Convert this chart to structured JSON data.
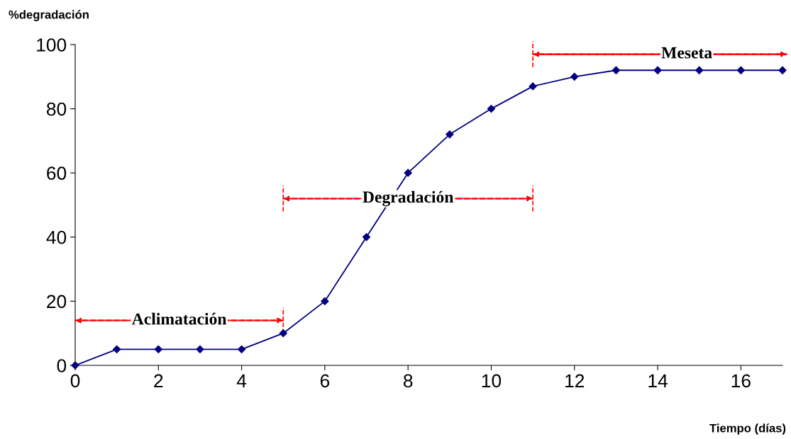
{
  "chart_data": {
    "type": "line",
    "xlabel": "Tiempo (días)",
    "ylabel": "%degradación",
    "x": [
      0,
      1,
      2,
      3,
      4,
      5,
      6,
      7,
      8,
      9,
      10,
      11,
      12,
      13,
      14,
      15,
      16,
      17
    ],
    "series": [
      {
        "color": "#000080",
        "values": [
          0,
          5,
          5,
          5,
          5,
          10,
          20,
          40,
          60,
          72,
          80,
          87,
          90,
          92,
          92,
          92,
          92,
          92
        ]
      }
    ],
    "marker": "diamond",
    "line_style": "solid",
    "xlim": [
      0,
      17
    ],
    "xticks": [
      0,
      2,
      4,
      6,
      8,
      10,
      12,
      14,
      16
    ],
    "ylim": [
      0,
      100
    ],
    "yticks": [
      0,
      20,
      40,
      60,
      80,
      100
    ],
    "grid": false,
    "annotations": [
      "Aclimatación",
      "Degradación",
      "Meseta"
    ]
  }
}
